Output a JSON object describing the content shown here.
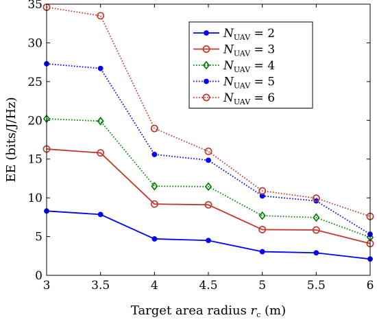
{
  "chart_data": {
    "type": "line",
    "xlabel": "Target area radius",
    "xlabel_symbol": "r",
    "xlabel_symbol_sub": "c",
    "xlabel_unit": "(m)",
    "ylabel": "EE (bits/J/Hz)",
    "xlim": [
      3,
      6
    ],
    "ylim": [
      0,
      35
    ],
    "x": [
      3,
      3.5,
      4,
      4.5,
      5,
      5.5,
      6
    ],
    "x_ticks": [
      "3",
      "3.5",
      "4",
      "4.5",
      "5",
      "5.5",
      "6"
    ],
    "y_ticks": [
      "0",
      "5",
      "10",
      "15",
      "20",
      "25",
      "30",
      "35"
    ],
    "grid": false,
    "legend_position": "top-right",
    "legend_symbol": "N",
    "legend_sub": "UAV",
    "series": [
      {
        "name": "N_UAV = 2",
        "value_label": "2",
        "color": "#0000ff",
        "line_style": "solid",
        "marker": "dot",
        "values": [
          8.3,
          7.85,
          4.7,
          4.5,
          3.05,
          2.9,
          2.1
        ]
      },
      {
        "name": "N_UAV = 3",
        "value_label": "3",
        "color": "#c0392b",
        "line_style": "solid",
        "marker": "circle",
        "values": [
          16.3,
          15.8,
          9.2,
          9.1,
          5.9,
          5.85,
          4.1
        ]
      },
      {
        "name": "N_UAV = 4",
        "value_label": "4",
        "color": "#008000",
        "line_style": "dotted",
        "marker": "diamond",
        "values": [
          20.2,
          19.9,
          11.5,
          11.45,
          7.7,
          7.45,
          4.9
        ]
      },
      {
        "name": "N_UAV = 5",
        "value_label": "5",
        "color": "#0000ff",
        "line_style": "dotted",
        "marker": "dot",
        "values": [
          27.3,
          26.7,
          15.6,
          14.85,
          10.25,
          9.6,
          5.3
        ]
      },
      {
        "name": "N_UAV = 6",
        "value_label": "6",
        "color": "#c0392b",
        "line_style": "dotted",
        "marker": "circle",
        "values": [
          34.6,
          33.5,
          18.95,
          16.0,
          10.9,
          9.95,
          7.6
        ]
      }
    ]
  }
}
